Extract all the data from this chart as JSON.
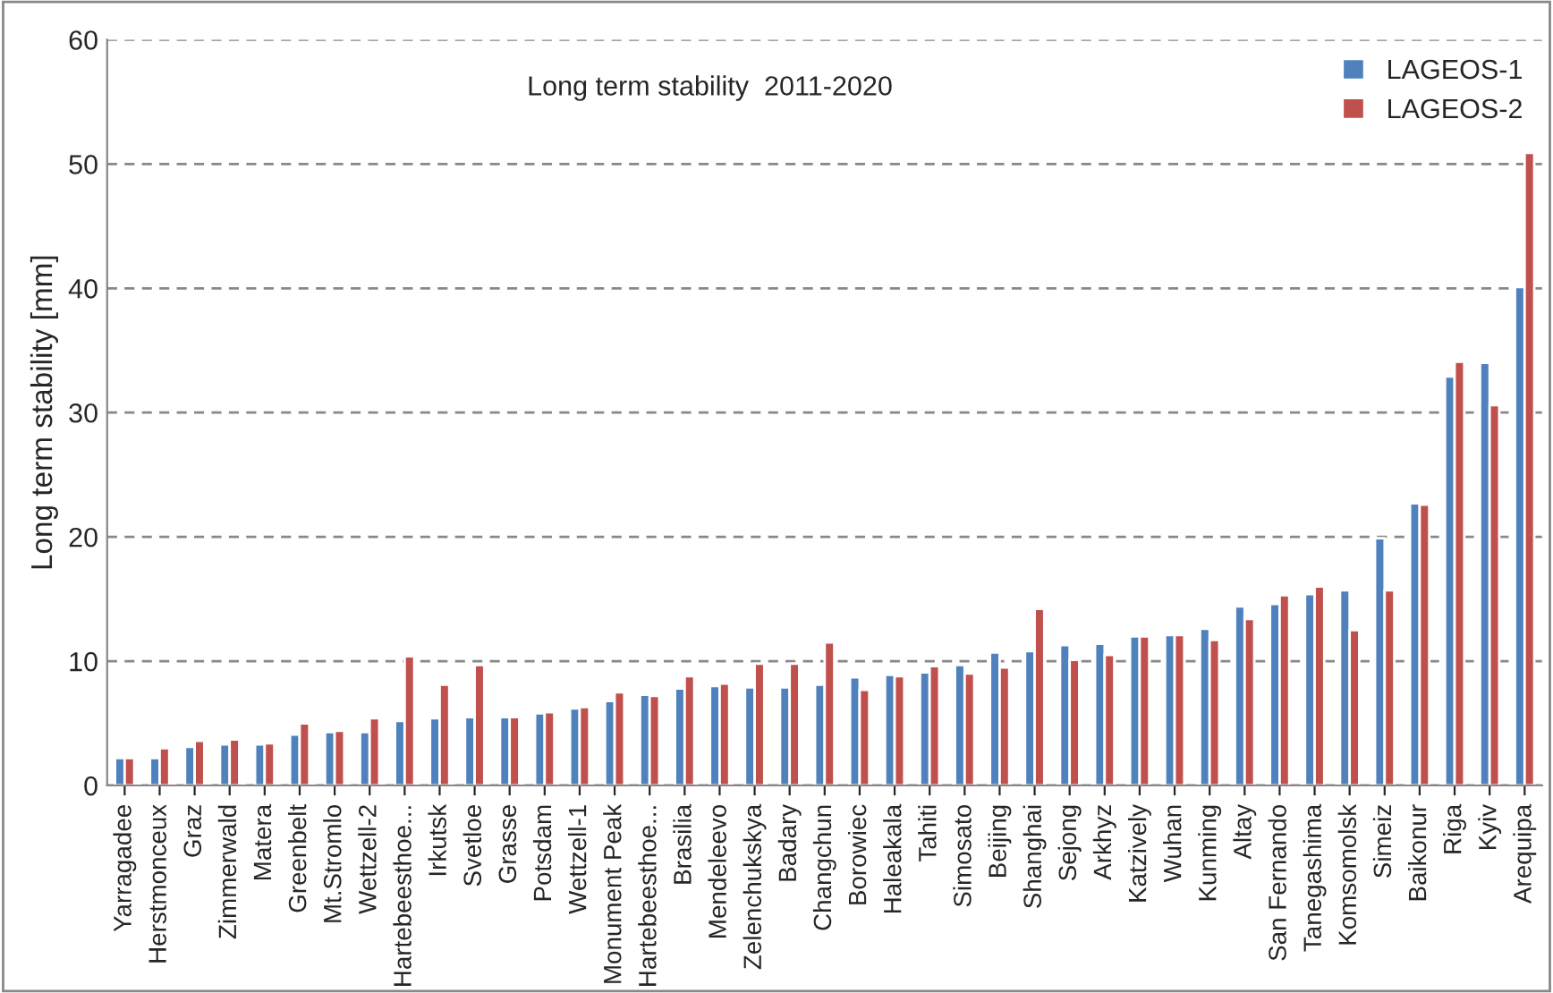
{
  "chart_data": {
    "type": "bar",
    "title": "Long term stability  2011-2020",
    "ylabel": "Long term stability [mm]",
    "categories": [
      "Yarragadee",
      "Herstmonceux",
      "Graz",
      "Zimmerwald",
      "Matera",
      "Greenbelt",
      "Mt.Stromlo",
      "Wettzell-2",
      "Hartebeesthoe...",
      "Irkutsk",
      "Svetloe",
      "Grasse",
      "Potsdam",
      "Wettzell-1",
      "Monument Peak",
      "Hartebeesthoe...",
      "Brasilia",
      "Mendeleevo",
      "Zelenchukskya",
      "Badary",
      "Changchun",
      "Borowiec",
      "Haleakala",
      "Tahiti",
      "Simosato",
      "Beijing",
      "Shanghai",
      "Sejong",
      "Arkhyz",
      "Katzively",
      "Wuhan",
      "Kunming",
      "Altay",
      "San Fernando",
      "Tanegashima",
      "Komsomolsk",
      "Simeiz",
      "Baikonur",
      "Riga",
      "Kyiv",
      "Arequipa"
    ],
    "series": [
      {
        "name": "LAGEOS-1",
        "color": "#4f81bd",
        "values": [
          2.2,
          2.2,
          3.1,
          3.3,
          3.3,
          4.1,
          4.3,
          4.3,
          5.2,
          5.4,
          5.5,
          5.5,
          5.8,
          6.2,
          6.8,
          7.3,
          7.8,
          8.0,
          7.9,
          7.9,
          8.1,
          8.7,
          8.9,
          9.1,
          9.7,
          10.7,
          10.8,
          11.3,
          11.4,
          12.0,
          12.1,
          12.6,
          14.4,
          14.6,
          15.4,
          15.7,
          19.9,
          22.7,
          32.9,
          34.0,
          40.1
        ]
      },
      {
        "name": "LAGEOS-2",
        "color": "#c0504d",
        "values": [
          2.2,
          3.0,
          3.6,
          3.7,
          3.4,
          5.0,
          4.4,
          5.4,
          10.4,
          8.1,
          9.7,
          5.5,
          5.9,
          6.3,
          7.5,
          7.2,
          8.8,
          8.2,
          9.8,
          9.8,
          11.5,
          7.7,
          8.8,
          9.6,
          9.0,
          9.5,
          14.2,
          10.1,
          10.5,
          12.0,
          12.1,
          11.7,
          13.4,
          15.3,
          16.0,
          12.5,
          15.7,
          22.6,
          34.1,
          30.6,
          50.9
        ]
      }
    ],
    "ylim": [
      0,
      60
    ],
    "yticks": [
      0,
      10,
      20,
      30,
      40,
      50,
      60
    ],
    "grid": "y",
    "legend": "top right"
  }
}
